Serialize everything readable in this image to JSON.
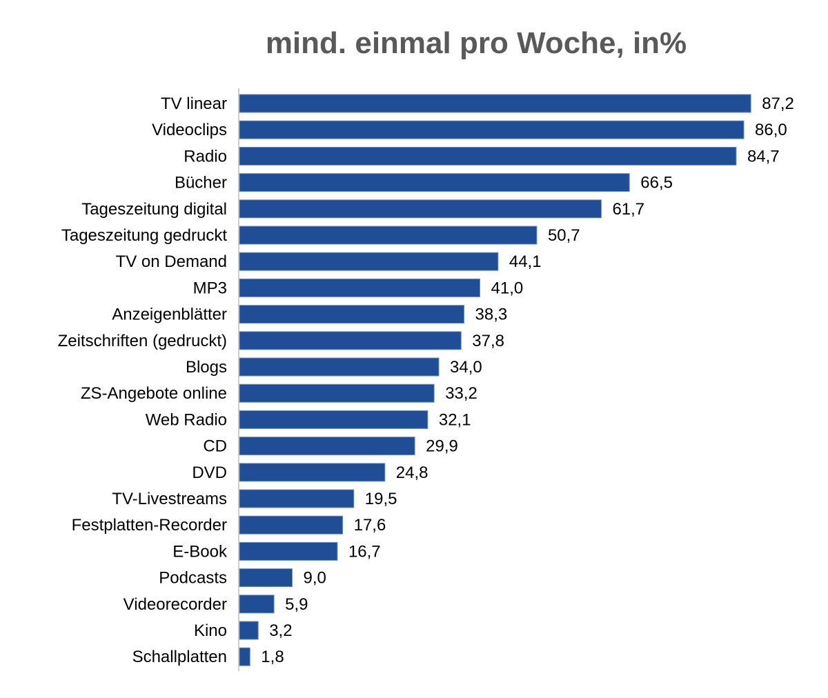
{
  "chart_data": {
    "type": "bar",
    "orientation": "horizontal",
    "title": "mind. einmal pro Woche, in%",
    "xlabel": "",
    "ylabel": "",
    "xlim": [
      0,
      100
    ],
    "grid": false,
    "legend": "none",
    "bar_color": "#1f4e96",
    "categories": [
      "TV linear",
      "Videoclips",
      "Radio",
      "Bücher",
      "Tageszeitung digital",
      "Tageszeitung gedruckt",
      "TV on Demand",
      "MP3",
      "Anzeigenblätter",
      "Zeitschriften (gedruckt)",
      "Blogs",
      "ZS-Angebote online",
      "Web Radio",
      "CD",
      "DVD",
      "TV-Livestreams",
      "Festplatten-Recorder",
      "E-Book",
      "Podcasts",
      "Videorecorder",
      "Kino",
      "Schallplatten"
    ],
    "values": [
      87.2,
      86.0,
      84.7,
      66.5,
      61.7,
      50.7,
      44.1,
      41.0,
      38.3,
      37.8,
      34.0,
      33.2,
      32.1,
      29.9,
      24.8,
      19.5,
      17.6,
      16.7,
      9.0,
      5.9,
      3.2,
      1.8
    ],
    "value_labels": [
      "87,2",
      "86,0",
      "84,7",
      "66,5",
      "61,7",
      "50,7",
      "44,1",
      "41,0",
      "38,3",
      "37,8",
      "34,0",
      "33,2",
      "32,1",
      "29,9",
      "24,8",
      "19,5",
      "17,6",
      "16,7",
      "9,0",
      "5,9",
      "3,2",
      "1,8"
    ]
  }
}
